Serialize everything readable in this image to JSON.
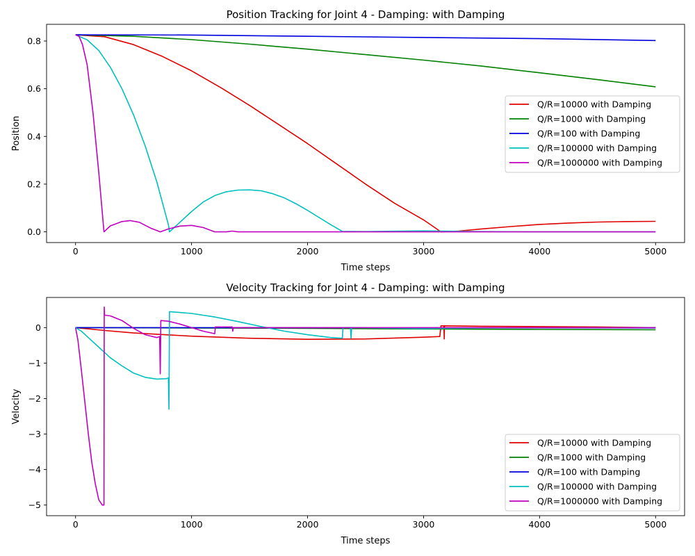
{
  "colors": {
    "Q/R=10000 with Damping": "#e00000",
    "Q/R=1000 with Damping": "#008000",
    "Q/R=100 with Damping": "#0000dd",
    "Q/R=100000 with Damping": "#00bfbf",
    "Q/R=1000000 with Damping": "#bf00bf"
  },
  "chart_data": [
    {
      "type": "line",
      "title": "Position Tracking for Joint 4 - Damping: with Damping",
      "xlabel": "Time steps",
      "ylabel": "Position",
      "xlim": [
        -250,
        5250
      ],
      "ylim": [
        -0.045,
        0.87
      ],
      "xticks": [
        0,
        1000,
        2000,
        3000,
        4000,
        5000
      ],
      "yticks": [
        0.0,
        0.2,
        0.4,
        0.6,
        0.8
      ],
      "ytick_labels": [
        "0.0",
        "0.2",
        "0.4",
        "0.6",
        "0.8"
      ],
      "grid": false,
      "legend_position": "center-right",
      "series": [
        {
          "name": "Q/R=10000 with Damping",
          "color": "#e00000",
          "points": [
            [
              0,
              0.826
            ],
            [
              250,
              0.818
            ],
            [
              500,
              0.785
            ],
            [
              750,
              0.735
            ],
            [
              1000,
              0.675
            ],
            [
              1250,
              0.605
            ],
            [
              1500,
              0.53
            ],
            [
              1750,
              0.45
            ],
            [
              2000,
              0.37
            ],
            [
              2250,
              0.285
            ],
            [
              2500,
              0.2
            ],
            [
              2750,
              0.12
            ],
            [
              3000,
              0.05
            ],
            [
              3150,
              0.0
            ],
            [
              3300,
              0.003
            ],
            [
              3500,
              0.012
            ],
            [
              3750,
              0.022
            ],
            [
              4000,
              0.031
            ],
            [
              4250,
              0.037
            ],
            [
              4500,
              0.041
            ],
            [
              4750,
              0.043
            ],
            [
              5000,
              0.044
            ]
          ]
        },
        {
          "name": "Q/R=1000 with Damping",
          "color": "#008000",
          "points": [
            [
              0,
              0.826
            ],
            [
              500,
              0.82
            ],
            [
              1000,
              0.806
            ],
            [
              1500,
              0.787
            ],
            [
              2000,
              0.766
            ],
            [
              2500,
              0.743
            ],
            [
              3000,
              0.72
            ],
            [
              3500,
              0.695
            ],
            [
              4000,
              0.667
            ],
            [
              4500,
              0.638
            ],
            [
              5000,
              0.608
            ]
          ]
        },
        {
          "name": "Q/R=100 with Damping",
          "color": "#0000dd",
          "points": [
            [
              0,
              0.826
            ],
            [
              1000,
              0.825
            ],
            [
              2000,
              0.82
            ],
            [
              3000,
              0.815
            ],
            [
              4000,
              0.81
            ],
            [
              5000,
              0.802
            ]
          ]
        },
        {
          "name": "Q/R=100000 with Damping",
          "color": "#00bfbf",
          "points": [
            [
              0,
              0.826
            ],
            [
              100,
              0.805
            ],
            [
              200,
              0.76
            ],
            [
              300,
              0.69
            ],
            [
              400,
              0.6
            ],
            [
              500,
              0.49
            ],
            [
              600,
              0.36
            ],
            [
              700,
              0.21
            ],
            [
              800,
              0.03
            ],
            [
              810,
              0.0
            ],
            [
              900,
              0.04
            ],
            [
              1000,
              0.085
            ],
            [
              1100,
              0.125
            ],
            [
              1200,
              0.152
            ],
            [
              1300,
              0.168
            ],
            [
              1400,
              0.175
            ],
            [
              1500,
              0.176
            ],
            [
              1600,
              0.172
            ],
            [
              1700,
              0.16
            ],
            [
              1800,
              0.142
            ],
            [
              1900,
              0.118
            ],
            [
              2000,
              0.09
            ],
            [
              2100,
              0.06
            ],
            [
              2200,
              0.03
            ],
            [
              2300,
              0.002
            ],
            [
              2500,
              0.001
            ],
            [
              3000,
              0.004
            ],
            [
              3500,
              0.001
            ],
            [
              4000,
              0.0
            ],
            [
              5000,
              0.0
            ]
          ]
        },
        {
          "name": "Q/R=1000000 with Damping",
          "color": "#bf00bf",
          "points": [
            [
              0,
              0.826
            ],
            [
              30,
              0.82
            ],
            [
              60,
              0.785
            ],
            [
              100,
              0.7
            ],
            [
              150,
              0.5
            ],
            [
              200,
              0.25
            ],
            [
              245,
              0.0
            ],
            [
              300,
              0.025
            ],
            [
              400,
              0.043
            ],
            [
              470,
              0.047
            ],
            [
              550,
              0.04
            ],
            [
              650,
              0.015
            ],
            [
              730,
              0.0
            ],
            [
              800,
              0.012
            ],
            [
              900,
              0.024
            ],
            [
              1000,
              0.027
            ],
            [
              1100,
              0.018
            ],
            [
              1200,
              0.0
            ],
            [
              1300,
              0.0
            ],
            [
              1350,
              0.003
            ],
            [
              1400,
              0.0
            ],
            [
              2000,
              0.0
            ],
            [
              5000,
              0.0
            ]
          ]
        }
      ]
    },
    {
      "type": "line",
      "title": "Velocity Tracking for Joint 4 - Damping: with Damping",
      "xlabel": "Time steps",
      "ylabel": "Velocity",
      "xlim": [
        -250,
        5250
      ],
      "ylim": [
        -5.3,
        0.85
      ],
      "xticks": [
        0,
        1000,
        2000,
        3000,
        4000,
        5000
      ],
      "yticks": [
        0,
        -1,
        -2,
        -3,
        -4,
        -5
      ],
      "ytick_labels": [
        "0",
        "−1",
        "−2",
        "−3",
        "−4",
        "−5"
      ],
      "grid": false,
      "legend_position": "lower-right",
      "series": [
        {
          "name": "Q/R=10000 with Damping",
          "color": "#e00000",
          "points": [
            [
              0,
              0.0
            ],
            [
              250,
              -0.08
            ],
            [
              500,
              -0.15
            ],
            [
              1000,
              -0.24
            ],
            [
              1500,
              -0.3
            ],
            [
              2000,
              -0.33
            ],
            [
              2500,
              -0.32
            ],
            [
              3000,
              -0.27
            ],
            [
              3140,
              -0.25
            ],
            [
              3150,
              0.05
            ],
            [
              3175,
              0.05
            ],
            [
              3178,
              -0.32
            ],
            [
              3180,
              0.05
            ],
            [
              3500,
              0.04
            ],
            [
              4000,
              0.03
            ],
            [
              4500,
              0.02
            ],
            [
              5000,
              0.0
            ]
          ]
        },
        {
          "name": "Q/R=1000 with Damping",
          "color": "#008000",
          "points": [
            [
              0,
              0.0
            ],
            [
              1000,
              -0.01
            ],
            [
              2000,
              -0.02
            ],
            [
              3000,
              -0.04
            ],
            [
              4000,
              -0.05
            ],
            [
              5000,
              -0.06
            ]
          ]
        },
        {
          "name": "Q/R=100 with Damping",
          "color": "#0000dd",
          "points": [
            [
              0,
              0.0
            ],
            [
              1000,
              0.0
            ],
            [
              2000,
              -0.003
            ],
            [
              3000,
              -0.006
            ],
            [
              4000,
              -0.008
            ],
            [
              5000,
              -0.01
            ]
          ]
        },
        {
          "name": "Q/R=100000 with Damping",
          "color": "#00bfbf",
          "points": [
            [
              0,
              0.0
            ],
            [
              50,
              -0.1
            ],
            [
              100,
              -0.25
            ],
            [
              200,
              -0.55
            ],
            [
              300,
              -0.85
            ],
            [
              400,
              -1.08
            ],
            [
              500,
              -1.28
            ],
            [
              600,
              -1.4
            ],
            [
              700,
              -1.45
            ],
            [
              780,
              -1.44
            ],
            [
              800,
              -1.42
            ],
            [
              805,
              -2.3
            ],
            [
              810,
              0.45
            ],
            [
              1000,
              0.4
            ],
            [
              1200,
              0.3
            ],
            [
              1400,
              0.17
            ],
            [
              1600,
              0.03
            ],
            [
              1800,
              -0.1
            ],
            [
              2000,
              -0.2
            ],
            [
              2200,
              -0.28
            ],
            [
              2300,
              -0.3
            ],
            [
              2305,
              0.0
            ],
            [
              2370,
              0.0
            ],
            [
              2375,
              -0.3
            ],
            [
              2380,
              0.0
            ],
            [
              3000,
              -0.03
            ],
            [
              3500,
              -0.01
            ],
            [
              5000,
              0.0
            ]
          ]
        },
        {
          "name": "Q/R=1000000 with Damping",
          "color": "#bf00bf",
          "points": [
            [
              0,
              0.0
            ],
            [
              20,
              -0.35
            ],
            [
              50,
              -1.2
            ],
            [
              80,
              -2.1
            ],
            [
              110,
              -3.0
            ],
            [
              140,
              -3.8
            ],
            [
              170,
              -4.4
            ],
            [
              200,
              -4.85
            ],
            [
              230,
              -5.0
            ],
            [
              245,
              -5.0
            ],
            [
              247,
              0.58
            ],
            [
              250,
              0.35
            ],
            [
              300,
              0.33
            ],
            [
              400,
              0.2
            ],
            [
              500,
              -0.02
            ],
            [
              600,
              -0.2
            ],
            [
              700,
              -0.28
            ],
            [
              725,
              -0.25
            ],
            [
              730,
              -1.3
            ],
            [
              735,
              0.2
            ],
            [
              800,
              0.18
            ],
            [
              900,
              0.1
            ],
            [
              1000,
              0.0
            ],
            [
              1100,
              -0.1
            ],
            [
              1200,
              -0.17
            ],
            [
              1205,
              0.02
            ],
            [
              1300,
              0.02
            ],
            [
              1350,
              0.02
            ],
            [
              1355,
              -0.1
            ],
            [
              1360,
              0.0
            ],
            [
              2000,
              0.0
            ],
            [
              2300,
              0.0
            ],
            [
              3000,
              0.0
            ],
            [
              5000,
              0.0
            ]
          ]
        }
      ]
    }
  ]
}
